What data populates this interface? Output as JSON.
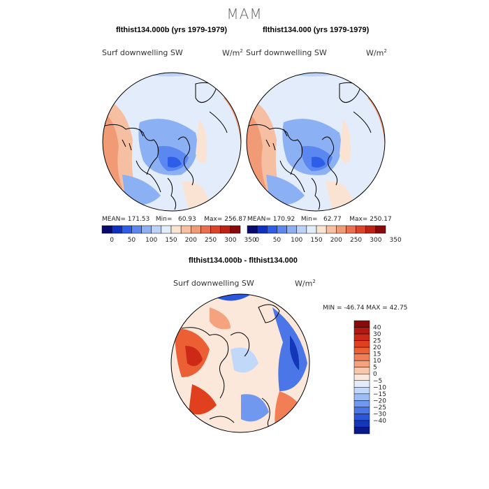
{
  "page_title": "MAM",
  "chart_data": [
    {
      "type": "heatmap",
      "projection": "north-polar-stereographic",
      "case_title": "flthist134.000b (yrs 1979-1979)",
      "variable": "Surf downwelling SW",
      "units": "W/m",
      "units_exp": "2",
      "mean_label": "MEAN=",
      "mean": "171.53",
      "min_label": "Min=",
      "min": "60.93",
      "max_label": "Max=",
      "max": "256.87",
      "colorbar_ticks": [
        "0",
        "50",
        "100",
        "150",
        "200",
        "250",
        "300",
        "350"
      ],
      "colorbar_colors": [
        "#0a0a6e",
        "#1030c0",
        "#2e5ee8",
        "#5a88f0",
        "#8cb0f4",
        "#bcd2f6",
        "#e2ecfa",
        "#fbe3d4",
        "#f6bfa2",
        "#f19a76",
        "#e8704e",
        "#d9442a",
        "#bd2214",
        "#8a0a0a"
      ]
    },
    {
      "type": "heatmap",
      "projection": "north-polar-stereographic",
      "case_title": "flthist134.000 (yrs 1979-1979)",
      "variable": "Surf downwelling SW",
      "units": "W/m",
      "units_exp": "2",
      "mean_label": "MEAN=",
      "mean": "170.92",
      "min_label": "Min=",
      "min": "62.77",
      "max_label": "Max=",
      "max": "250.17",
      "colorbar_ticks": [
        "0",
        "50",
        "100",
        "150",
        "200",
        "250",
        "300",
        "350"
      ],
      "colorbar_colors": [
        "#0a0a6e",
        "#1030c0",
        "#2e5ee8",
        "#5a88f0",
        "#8cb0f4",
        "#bcd2f6",
        "#e2ecfa",
        "#fbe3d4",
        "#f6bfa2",
        "#f19a76",
        "#e8704e",
        "#d9442a",
        "#bd2214",
        "#8a0a0a"
      ]
    },
    {
      "type": "heatmap",
      "projection": "north-polar-stereographic",
      "case_title": "flthist134.000b - flthist134.000",
      "variable": "Surf downwelling SW",
      "units": "W/m",
      "units_exp": "2",
      "minmax_text": "MIN = -46.74 MAX =  42.75",
      "min": -46.74,
      "max": 42.75,
      "colorbar_ticks": [
        "40",
        "30",
        "25",
        "20",
        "15",
        "10",
        "5",
        "0",
        "−5",
        "−10",
        "−15",
        "−20",
        "−25",
        "−30",
        "−40"
      ],
      "colorbar_colors": [
        "#8a0a0a",
        "#b01a10",
        "#cc2a16",
        "#e0401e",
        "#ec5e34",
        "#f27e56",
        "#f5a27e",
        "#f8c8ac",
        "#fbe8da",
        "#e2ecfa",
        "#c2d8f8",
        "#9cbcf4",
        "#7098ee",
        "#4a76e8",
        "#2a56dc",
        "#1436b8",
        "#0a1a8a"
      ]
    }
  ]
}
